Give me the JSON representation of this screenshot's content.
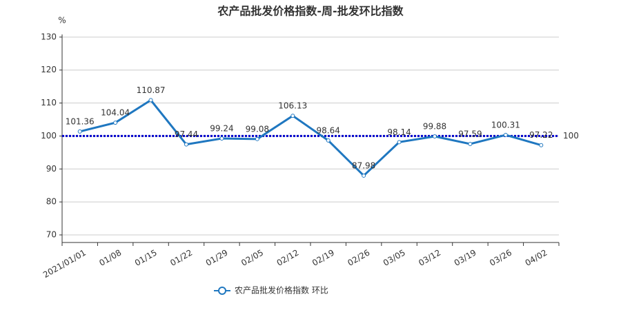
{
  "chart_data": {
    "type": "line",
    "title": "农产品批发价格指数-周-批发环比指数",
    "y_unit": "%",
    "categories": [
      "2021/01/01",
      "01/08",
      "01/15",
      "01/22",
      "01/29",
      "02/05",
      "02/12",
      "02/19",
      "02/26",
      "03/05",
      "03/12",
      "03/19",
      "03/26",
      "04/02"
    ],
    "series": [
      {
        "name": "农产品批发价格指数  环比",
        "color": "#1f77c0",
        "values": [
          101.36,
          104.04,
          110.87,
          97.44,
          99.24,
          99.08,
          106.13,
          98.64,
          87.98,
          98.14,
          99.88,
          97.59,
          100.31,
          97.22
        ]
      }
    ],
    "reference_line": 100,
    "reference_color": "#0000cc",
    "ylim": [
      67.7,
      130.8
    ],
    "yticks": [
      70,
      80,
      90,
      100,
      110,
      120,
      130
    ],
    "grid": true
  }
}
